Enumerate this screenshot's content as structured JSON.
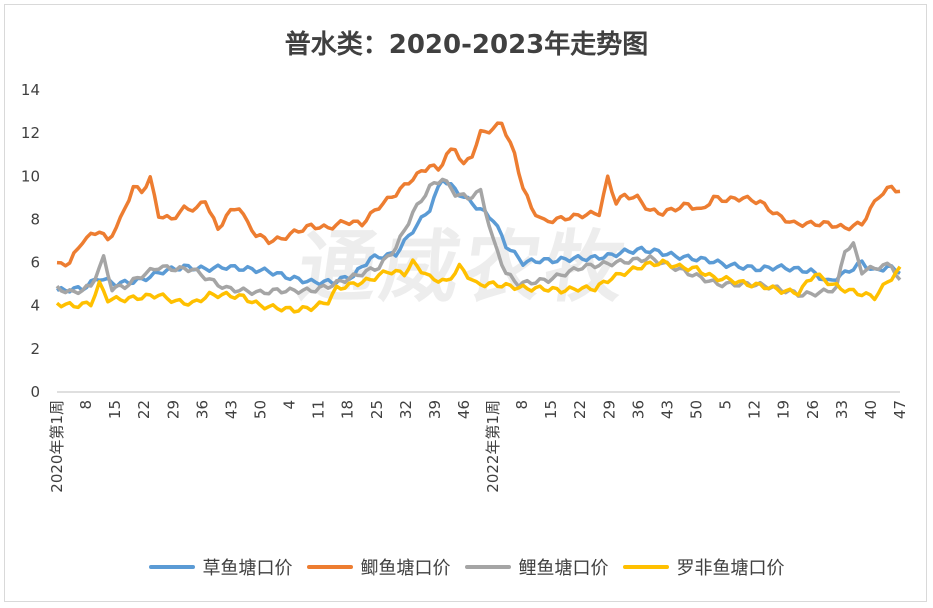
{
  "chart_data": {
    "type": "line",
    "title": "普水类：2020-2023年走势图",
    "watermark": "通威农牧",
    "ylim": [
      0,
      14
    ],
    "yticks": [
      0,
      2,
      4,
      6,
      8,
      10,
      12,
      14
    ],
    "x_tick_labels": [
      "2020年第1周",
      "8",
      "15",
      "22",
      "29",
      "36",
      "43",
      "50",
      "4",
      "11",
      "18",
      "25",
      "32",
      "39",
      "46",
      "2022年第1周",
      "8",
      "15",
      "22",
      "29",
      "36",
      "43",
      "50",
      "5",
      "12",
      "19",
      "26",
      "33",
      "40",
      "47"
    ],
    "n_points": 200,
    "series": [
      {
        "name": "草鱼塘口价",
        "color": "#5B9BD5",
        "keyframes": [
          [
            0,
            4.7
          ],
          [
            6,
            4.8
          ],
          [
            10,
            5.3
          ],
          [
            14,
            5.0
          ],
          [
            20,
            5.2
          ],
          [
            25,
            5.6
          ],
          [
            30,
            5.8
          ],
          [
            35,
            5.7
          ],
          [
            40,
            5.8
          ],
          [
            45,
            5.7
          ],
          [
            50,
            5.6
          ],
          [
            55,
            5.3
          ],
          [
            60,
            5.1
          ],
          [
            65,
            5.1
          ],
          [
            70,
            5.4
          ],
          [
            74,
            6.2
          ],
          [
            80,
            6.4
          ],
          [
            84,
            7.5
          ],
          [
            88,
            8.5
          ],
          [
            91,
            9.9
          ],
          [
            95,
            9.2
          ],
          [
            99,
            8.6
          ],
          [
            103,
            8.0
          ],
          [
            106,
            6.8
          ],
          [
            110,
            6.0
          ],
          [
            114,
            6.1
          ],
          [
            118,
            6.1
          ],
          [
            122,
            6.2
          ],
          [
            126,
            6.2
          ],
          [
            130,
            6.3
          ],
          [
            134,
            6.5
          ],
          [
            138,
            6.6
          ],
          [
            142,
            6.5
          ],
          [
            146,
            6.3
          ],
          [
            150,
            6.2
          ],
          [
            154,
            6.1
          ],
          [
            158,
            5.9
          ],
          [
            162,
            5.8
          ],
          [
            166,
            5.7
          ],
          [
            170,
            5.8
          ],
          [
            174,
            5.7
          ],
          [
            178,
            5.6
          ],
          [
            182,
            5.1
          ],
          [
            186,
            5.5
          ],
          [
            190,
            6.0
          ],
          [
            193,
            5.6
          ],
          [
            196,
            5.8
          ],
          [
            199,
            5.6
          ]
        ]
      },
      {
        "name": "鲫鱼塘口价",
        "color": "#ED7D31",
        "keyframes": [
          [
            0,
            5.9
          ],
          [
            3,
            6.0
          ],
          [
            6,
            7.0
          ],
          [
            10,
            7.5
          ],
          [
            12,
            7.0
          ],
          [
            15,
            8.0
          ],
          [
            18,
            9.5
          ],
          [
            20,
            9.3
          ],
          [
            22,
            9.9
          ],
          [
            24,
            8.2
          ],
          [
            27,
            8.0
          ],
          [
            30,
            8.5
          ],
          [
            33,
            8.5
          ],
          [
            35,
            8.9
          ],
          [
            38,
            7.5
          ],
          [
            40,
            8.2
          ],
          [
            43,
            8.6
          ],
          [
            45,
            7.8
          ],
          [
            47,
            7.3
          ],
          [
            50,
            7.0
          ],
          [
            53,
            7.1
          ],
          [
            56,
            7.4
          ],
          [
            60,
            7.7
          ],
          [
            64,
            7.6
          ],
          [
            68,
            7.9
          ],
          [
            72,
            7.8
          ],
          [
            76,
            8.6
          ],
          [
            80,
            9.2
          ],
          [
            84,
            9.9
          ],
          [
            88,
            10.5
          ],
          [
            90,
            10.3
          ],
          [
            92,
            11.0
          ],
          [
            94,
            11.3
          ],
          [
            96,
            10.5
          ],
          [
            98,
            11.0
          ],
          [
            100,
            12.0
          ],
          [
            103,
            12.2
          ],
          [
            105,
            12.5
          ],
          [
            108,
            11.0
          ],
          [
            110,
            9.5
          ],
          [
            112,
            8.5
          ],
          [
            115,
            7.9
          ],
          [
            118,
            8.0
          ],
          [
            121,
            8.1
          ],
          [
            124,
            8.2
          ],
          [
            128,
            8.3
          ],
          [
            130,
            9.9
          ],
          [
            132,
            8.8
          ],
          [
            134,
            9.1
          ],
          [
            137,
            9.0
          ],
          [
            140,
            8.4
          ],
          [
            143,
            8.3
          ],
          [
            146,
            8.5
          ],
          [
            149,
            8.7
          ],
          [
            152,
            8.4
          ],
          [
            155,
            9.0
          ],
          [
            158,
            8.9
          ],
          [
            162,
            9.0
          ],
          [
            166,
            8.8
          ],
          [
            170,
            8.2
          ],
          [
            174,
            7.8
          ],
          [
            178,
            7.8
          ],
          [
            182,
            7.8
          ],
          [
            186,
            7.6
          ],
          [
            190,
            7.8
          ],
          [
            194,
            9.1
          ],
          [
            197,
            9.5
          ],
          [
            199,
            9.3
          ]
        ]
      },
      {
        "name": "鲤鱼塘口价",
        "color": "#A5A5A5",
        "keyframes": [
          [
            0,
            4.8
          ],
          [
            4,
            4.6
          ],
          [
            8,
            4.9
          ],
          [
            11,
            6.2
          ],
          [
            13,
            4.8
          ],
          [
            16,
            4.9
          ],
          [
            20,
            5.4
          ],
          [
            24,
            5.8
          ],
          [
            28,
            5.7
          ],
          [
            32,
            5.7
          ],
          [
            36,
            5.2
          ],
          [
            40,
            4.8
          ],
          [
            44,
            4.7
          ],
          [
            48,
            4.6
          ],
          [
            52,
            4.7
          ],
          [
            56,
            4.7
          ],
          [
            60,
            4.7
          ],
          [
            64,
            4.9
          ],
          [
            68,
            5.2
          ],
          [
            72,
            5.5
          ],
          [
            76,
            5.8
          ],
          [
            80,
            6.7
          ],
          [
            84,
            8.3
          ],
          [
            88,
            9.5
          ],
          [
            91,
            9.9
          ],
          [
            94,
            9.2
          ],
          [
            97,
            9.0
          ],
          [
            100,
            9.3
          ],
          [
            103,
            7.0
          ],
          [
            106,
            5.5
          ],
          [
            109,
            5.0
          ],
          [
            112,
            5.1
          ],
          [
            116,
            5.2
          ],
          [
            120,
            5.5
          ],
          [
            124,
            5.8
          ],
          [
            128,
            5.9
          ],
          [
            132,
            6.0
          ],
          [
            136,
            6.1
          ],
          [
            140,
            6.2
          ],
          [
            144,
            5.9
          ],
          [
            148,
            5.6
          ],
          [
            152,
            5.3
          ],
          [
            156,
            5.0
          ],
          [
            160,
            5.0
          ],
          [
            164,
            5.0
          ],
          [
            168,
            4.9
          ],
          [
            172,
            4.7
          ],
          [
            176,
            4.5
          ],
          [
            180,
            4.6
          ],
          [
            184,
            4.8
          ],
          [
            186,
            6.6
          ],
          [
            188,
            6.8
          ],
          [
            190,
            5.6
          ],
          [
            194,
            5.8
          ],
          [
            197,
            5.9
          ],
          [
            199,
            5.1
          ]
        ]
      },
      {
        "name": "罗非鱼塘口价",
        "color": "#FFC000",
        "keyframes": [
          [
            0,
            4.1
          ],
          [
            4,
            4.0
          ],
          [
            8,
            4.1
          ],
          [
            10,
            5.0
          ],
          [
            12,
            4.3
          ],
          [
            16,
            4.3
          ],
          [
            20,
            4.4
          ],
          [
            24,
            4.5
          ],
          [
            28,
            4.2
          ],
          [
            32,
            4.1
          ],
          [
            36,
            4.5
          ],
          [
            40,
            4.5
          ],
          [
            44,
            4.4
          ],
          [
            48,
            4.0
          ],
          [
            52,
            3.9
          ],
          [
            56,
            3.8
          ],
          [
            60,
            3.9
          ],
          [
            64,
            4.2
          ],
          [
            66,
            4.8
          ],
          [
            70,
            5.0
          ],
          [
            74,
            5.2
          ],
          [
            78,
            5.6
          ],
          [
            82,
            5.5
          ],
          [
            84,
            6.0
          ],
          [
            88,
            5.3
          ],
          [
            92,
            5.1
          ],
          [
            95,
            5.8
          ],
          [
            99,
            5.0
          ],
          [
            103,
            5.0
          ],
          [
            107,
            4.9
          ],
          [
            111,
            4.8
          ],
          [
            115,
            4.8
          ],
          [
            119,
            4.7
          ],
          [
            123,
            4.8
          ],
          [
            127,
            4.8
          ],
          [
            131,
            5.3
          ],
          [
            135,
            5.6
          ],
          [
            139,
            5.9
          ],
          [
            143,
            6.0
          ],
          [
            147,
            5.8
          ],
          [
            151,
            5.7
          ],
          [
            155,
            5.3
          ],
          [
            159,
            5.2
          ],
          [
            163,
            5.0
          ],
          [
            167,
            4.9
          ],
          [
            171,
            4.7
          ],
          [
            175,
            4.6
          ],
          [
            179,
            5.5
          ],
          [
            181,
            5.2
          ],
          [
            185,
            4.8
          ],
          [
            189,
            4.6
          ],
          [
            193,
            4.4
          ],
          [
            196,
            5.1
          ],
          [
            199,
            5.7
          ]
        ]
      }
    ]
  }
}
